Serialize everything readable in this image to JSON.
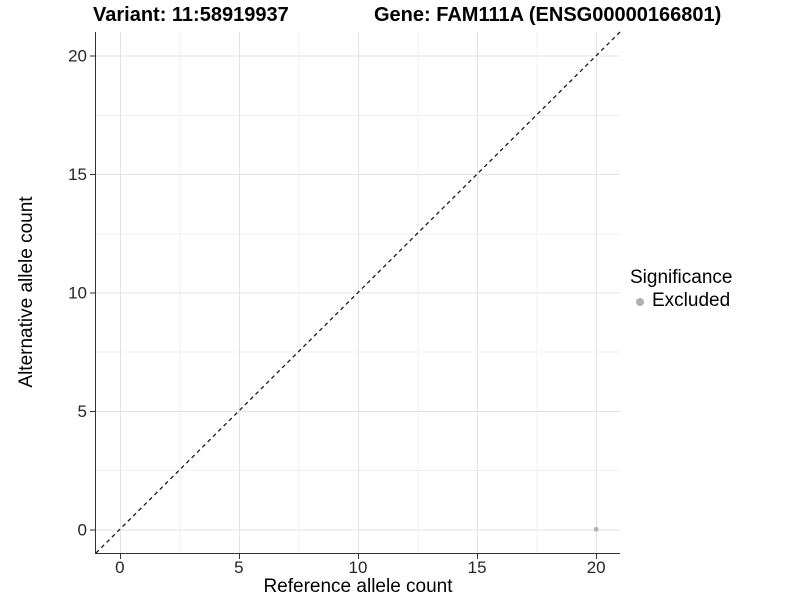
{
  "header": {
    "variant_title": "Variant: 11:58919937",
    "gene_title": "Gene: FAM111A (ENSG00000166801)"
  },
  "legend": {
    "title": "Significance",
    "items": [
      {
        "label": "Excluded",
        "color": "#b0b0b0"
      }
    ]
  },
  "chart_data": {
    "type": "scatter",
    "title": "Variant: 11:58919937 / Gene: FAM111A (ENSG00000166801)",
    "xlabel": "Reference allele count",
    "ylabel": "Alternative allele count",
    "xlim": [
      -1,
      21
    ],
    "ylim": [
      -1,
      21
    ],
    "x_major_ticks": [
      0,
      5,
      10,
      15,
      20
    ],
    "x_minor_ticks": [
      2.5,
      7.5,
      12.5,
      17.5
    ],
    "y_major_ticks": [
      0,
      5,
      10,
      15,
      20
    ],
    "y_minor_ticks": [
      2.5,
      7.5,
      12.5,
      17.5
    ],
    "grid": "major+minor",
    "legend_position": "right",
    "series": [
      {
        "name": "Excluded",
        "color": "#b0b0b0",
        "marker_radius": 2.4,
        "points": [
          {
            "x": 20,
            "y": 0
          }
        ]
      }
    ],
    "reference_line": {
      "slope": 1,
      "intercept": 0,
      "style": "dashed",
      "color": "#1a1a1a"
    }
  },
  "style": {
    "grid_major": "#e3e3e3",
    "grid_minor": "#f0f0f0",
    "axis_line": "#333333",
    "tick_mark": "#333333",
    "tick_label_color": "#262626",
    "background": "#ffffff"
  }
}
